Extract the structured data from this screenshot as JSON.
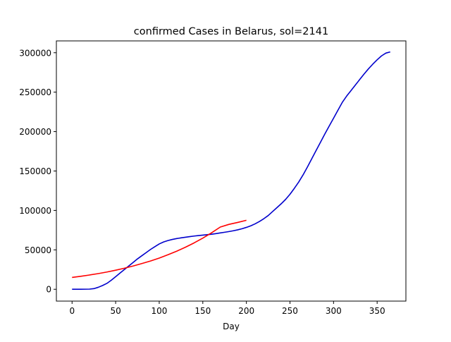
{
  "chart_data": {
    "type": "line",
    "title": "confirmed Cases in Belarus, sol=2141",
    "xlabel": "Day",
    "ylabel": "",
    "xlim": [
      -18,
      383
    ],
    "ylim": [
      -15000,
      315000
    ],
    "x_ticks": [
      0,
      50,
      100,
      150,
      200,
      250,
      300,
      350
    ],
    "y_ticks": [
      0,
      50000,
      100000,
      150000,
      200000,
      250000,
      300000
    ],
    "x_tick_labels": [
      "0",
      "50",
      "100",
      "150",
      "200",
      "250",
      "300",
      "350"
    ],
    "y_tick_labels": [
      "0",
      "50000",
      "100000",
      "150000",
      "200000",
      "250000",
      "300000"
    ],
    "grid": false,
    "series": [
      {
        "color": "#0000cc",
        "points": [
          [
            0,
            0
          ],
          [
            10,
            0
          ],
          [
            20,
            200
          ],
          [
            25,
            800
          ],
          [
            30,
            2500
          ],
          [
            35,
            4800
          ],
          [
            40,
            7500
          ],
          [
            45,
            11500
          ],
          [
            50,
            16000
          ],
          [
            55,
            20500
          ],
          [
            60,
            25000
          ],
          [
            65,
            29500
          ],
          [
            70,
            34000
          ],
          [
            75,
            38500
          ],
          [
            80,
            42500
          ],
          [
            85,
            46500
          ],
          [
            90,
            50500
          ],
          [
            95,
            54000
          ],
          [
            100,
            57500
          ],
          [
            105,
            60000
          ],
          [
            110,
            61800
          ],
          [
            115,
            63200
          ],
          [
            120,
            64300
          ],
          [
            125,
            65200
          ],
          [
            130,
            66000
          ],
          [
            135,
            66800
          ],
          [
            140,
            67500
          ],
          [
            145,
            68100
          ],
          [
            150,
            68700
          ],
          [
            155,
            69200
          ],
          [
            160,
            69800
          ],
          [
            165,
            70600
          ],
          [
            170,
            71500
          ],
          [
            175,
            72300
          ],
          [
            180,
            73200
          ],
          [
            185,
            74200
          ],
          [
            190,
            75400
          ],
          [
            195,
            76800
          ],
          [
            200,
            78500
          ],
          [
            205,
            80500
          ],
          [
            210,
            83000
          ],
          [
            215,
            86000
          ],
          [
            220,
            89500
          ],
          [
            225,
            93500
          ],
          [
            230,
            98500
          ],
          [
            235,
            103500
          ],
          [
            240,
            108500
          ],
          [
            245,
            114000
          ],
          [
            250,
            120500
          ],
          [
            255,
            128000
          ],
          [
            260,
            136000
          ],
          [
            265,
            145000
          ],
          [
            270,
            155000
          ],
          [
            275,
            165500
          ],
          [
            280,
            176000
          ],
          [
            285,
            186500
          ],
          [
            290,
            197000
          ],
          [
            295,
            207000
          ],
          [
            300,
            217000
          ],
          [
            305,
            227000
          ],
          [
            310,
            237000
          ],
          [
            315,
            245000
          ],
          [
            320,
            252000
          ],
          [
            325,
            259000
          ],
          [
            330,
            266000
          ],
          [
            335,
            273000
          ],
          [
            340,
            279500
          ],
          [
            345,
            285500
          ],
          [
            350,
            291000
          ],
          [
            355,
            296000
          ],
          [
            360,
            299500
          ],
          [
            365,
            301000
          ]
        ]
      },
      {
        "color": "#ff0000",
        "points": [
          [
            0,
            15000
          ],
          [
            10,
            16500
          ],
          [
            20,
            18100
          ],
          [
            30,
            19900
          ],
          [
            40,
            21900
          ],
          [
            50,
            24200
          ],
          [
            60,
            26700
          ],
          [
            70,
            29500
          ],
          [
            80,
            32600
          ],
          [
            90,
            35900
          ],
          [
            100,
            39600
          ],
          [
            110,
            43800
          ],
          [
            120,
            48300
          ],
          [
            130,
            53300
          ],
          [
            140,
            58800
          ],
          [
            150,
            64900
          ],
          [
            160,
            71600
          ],
          [
            170,
            78900
          ],
          [
            180,
            82300
          ],
          [
            190,
            84800
          ],
          [
            200,
            87500
          ]
        ]
      }
    ]
  }
}
